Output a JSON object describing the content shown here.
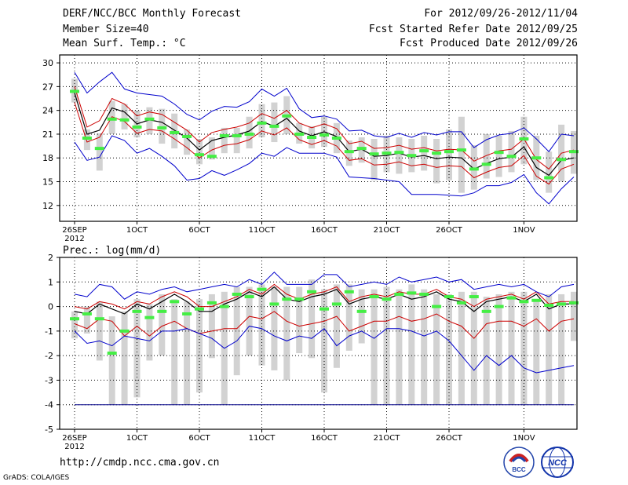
{
  "header": {
    "title": "DERF/NCC/BCC Monthly Forecast",
    "member_size": "Member Size=40",
    "variable": "Mean Surf. Temp.: °C",
    "period": "For 2012/09/26-2012/11/04",
    "fcst_started": "Fcst Started Refer Date 2012/09/25",
    "fcst_produced": "Fcst Produced Date 2012/09/26"
  },
  "footer": {
    "url": "http://cmdp.ncc.cma.gov.cn",
    "grads": "GrADS: COLA/IGES",
    "logo_bcc": "BCC",
    "logo_ncc": "NCC"
  },
  "colors": {
    "box": "#d2d2d2",
    "mean": "#000000",
    "inner": "#cc0000",
    "outer": "#0000cc",
    "green": "#44ee44",
    "grid": "#000000"
  },
  "chart_data": [
    {
      "type": "line",
      "title": "Mean Surf. Temp.: °C",
      "ylim": [
        10,
        31
      ],
      "yticks": [
        12,
        15,
        18,
        21,
        24,
        27,
        30
      ],
      "xtick_labels": [
        "26SEP\n2012",
        "1OCT",
        "6OCT",
        "11OCT",
        "16OCT",
        "21OCT",
        "26OCT",
        "1NOV"
      ],
      "xtick_days": [
        0,
        5,
        10,
        15,
        20,
        25,
        30,
        36
      ],
      "days": 40,
      "series": [
        {
          "name": "mean",
          "values": [
            26.2,
            21.0,
            21.5,
            24.3,
            23.8,
            22.3,
            22.8,
            22.5,
            21.5,
            20.5,
            19.0,
            20.2,
            20.6,
            20.9,
            21.4,
            22.6,
            22.0,
            23.0,
            21.4,
            20.8,
            21.3,
            20.7,
            18.8,
            19.1,
            18.2,
            18.3,
            18.6,
            18.1,
            18.3,
            17.9,
            18.1,
            18.0,
            16.6,
            17.3,
            17.9,
            18.1,
            19.4,
            16.8,
            15.8,
            17.7,
            18.0
          ]
        },
        {
          "name": "upper_inner",
          "values": [
            27.0,
            21.9,
            22.7,
            25.5,
            24.8,
            23.3,
            23.8,
            23.5,
            22.5,
            21.5,
            20.0,
            21.2,
            21.6,
            21.9,
            22.4,
            23.6,
            23.0,
            24.0,
            22.4,
            21.8,
            22.3,
            21.7,
            19.8,
            20.1,
            19.2,
            19.3,
            19.6,
            19.1,
            19.3,
            18.9,
            19.1,
            19.0,
            17.6,
            18.3,
            18.9,
            19.1,
            20.4,
            17.8,
            16.6,
            18.6,
            19.0
          ]
        },
        {
          "name": "lower_inner",
          "values": [
            25.0,
            20.0,
            20.6,
            23.2,
            22.6,
            21.1,
            21.6,
            21.4,
            20.4,
            19.3,
            18.0,
            19.0,
            19.6,
            19.8,
            20.3,
            21.4,
            20.9,
            21.8,
            20.3,
            19.7,
            20.2,
            19.5,
            17.7,
            17.9,
            17.1,
            17.2,
            17.5,
            17.0,
            17.2,
            16.8,
            17.0,
            16.9,
            15.5,
            16.2,
            16.8,
            17.0,
            18.3,
            15.7,
            14.7,
            16.6,
            17.2
          ]
        },
        {
          "name": "upper_outer",
          "values": [
            28.8,
            26.2,
            27.6,
            28.8,
            26.7,
            26.2,
            26.0,
            25.8,
            24.8,
            23.5,
            22.8,
            23.9,
            24.5,
            24.4,
            25.1,
            26.7,
            25.8,
            26.8,
            24.2,
            23.1,
            23.3,
            22.9,
            21.4,
            21.5,
            20.8,
            20.6,
            21.1,
            20.6,
            21.2,
            20.9,
            21.3,
            21.3,
            19.3,
            20.3,
            20.9,
            21.1,
            21.8,
            20.4,
            18.8,
            21.0,
            20.8
          ]
        },
        {
          "name": "lower_outer",
          "values": [
            20.0,
            17.7,
            18.1,
            20.8,
            20.2,
            18.6,
            19.2,
            18.2,
            17.0,
            15.2,
            15.4,
            16.4,
            15.8,
            16.5,
            17.3,
            18.6,
            18.2,
            19.3,
            18.6,
            18.6,
            18.6,
            18.1,
            15.6,
            15.5,
            15.4,
            15.2,
            15.0,
            13.4,
            13.4,
            13.4,
            13.3,
            13.2,
            13.6,
            14.5,
            14.5,
            14.9,
            15.9,
            13.6,
            12.2,
            14.1,
            15.6
          ]
        },
        {
          "name": "green_marker",
          "values": [
            26.4,
            20.5,
            19.2,
            22.9,
            22.8,
            21.9,
            22.9,
            21.8,
            21.2,
            20.7,
            18.4,
            18.2,
            20.8,
            20.8,
            21.0,
            22.4,
            22.0,
            23.3,
            21.0,
            20.6,
            20.9,
            20.5,
            18.8,
            19.2,
            18.5,
            18.6,
            18.7,
            18.3,
            18.9,
            18.6,
            18.8,
            19.0,
            16.6,
            17.2,
            18.7,
            18.2,
            20.4,
            18.0,
            15.5,
            17.8,
            18.8
          ]
        }
      ],
      "boxes": [
        [
          25.0,
          28.0
        ],
        [
          19.0,
          21.6
        ],
        [
          16.4,
          21.1
        ],
        [
          21.0,
          25.2
        ],
        [
          21.6,
          24.8
        ],
        [
          20.6,
          24.0
        ],
        [
          21.0,
          24.4
        ],
        [
          19.8,
          24.2
        ],
        [
          19.2,
          23.6
        ],
        [
          18.4,
          21.6
        ],
        [
          17.2,
          20.4
        ],
        [
          17.8,
          20.6
        ],
        [
          18.6,
          21.8
        ],
        [
          18.6,
          21.8
        ],
        [
          19.2,
          23.2
        ],
        [
          20.6,
          24.8
        ],
        [
          20.0,
          25.0
        ],
        [
          21.0,
          25.8
        ],
        [
          19.8,
          22.4
        ],
        [
          19.2,
          22.0
        ],
        [
          19.4,
          23.2
        ],
        [
          18.6,
          22.4
        ],
        [
          17.0,
          20.2
        ],
        [
          17.4,
          20.6
        ],
        [
          15.2,
          20.4
        ],
        [
          16.2,
          20.8
        ],
        [
          16.0,
          20.6
        ],
        [
          16.2,
          20.4
        ],
        [
          16.4,
          20.8
        ],
        [
          14.8,
          20.4
        ],
        [
          15.2,
          21.6
        ],
        [
          13.6,
          23.2
        ],
        [
          14.0,
          19.6
        ],
        [
          15.4,
          21.0
        ],
        [
          15.6,
          20.8
        ],
        [
          16.2,
          21.4
        ],
        [
          17.2,
          23.2
        ],
        [
          15.2,
          20.8
        ],
        [
          13.6,
          18.8
        ],
        [
          15.0,
          22.2
        ],
        [
          16.0,
          21.4
        ]
      ]
    },
    {
      "type": "line",
      "title": "Prec.: log(mm/d)",
      "ylim": [
        -5,
        2
      ],
      "yticks": [
        -5,
        -4,
        -3,
        -2,
        -1,
        0,
        1,
        2
      ],
      "xtick_labels": [
        "26SEP\n2012",
        "1OCT",
        "6OCT",
        "11OCT",
        "16OCT",
        "21OCT",
        "26OCT",
        "1NOV"
      ],
      "xtick_days": [
        0,
        5,
        10,
        15,
        20,
        25,
        30,
        36
      ],
      "days": 40,
      "series": [
        {
          "name": "mean",
          "values": [
            -0.2,
            -0.3,
            0.1,
            -0.1,
            -0.3,
            0.1,
            -0.1,
            0.2,
            0.5,
            0.2,
            -0.2,
            -0.2,
            0.1,
            0.3,
            0.6,
            0.4,
            0.8,
            0.3,
            0.2,
            0.4,
            0.5,
            0.7,
            0.1,
            0.3,
            0.4,
            0.3,
            0.5,
            0.3,
            0.4,
            0.6,
            0.3,
            0.2,
            -0.2,
            0.2,
            0.3,
            0.4,
            0.2,
            0.5,
            -0.1,
            0.1,
            0.1
          ]
        },
        {
          "name": "upper_inner",
          "values": [
            0.0,
            -0.1,
            0.2,
            0.1,
            -0.1,
            0.2,
            0.1,
            0.4,
            0.6,
            0.4,
            0.0,
            0.0,
            0.2,
            0.4,
            0.7,
            0.5,
            0.9,
            0.5,
            0.3,
            0.5,
            0.6,
            0.8,
            0.2,
            0.4,
            0.5,
            0.4,
            0.6,
            0.5,
            0.5,
            0.7,
            0.4,
            0.3,
            0.0,
            0.3,
            0.4,
            0.5,
            0.3,
            0.6,
            0.1,
            0.2,
            0.2
          ]
        },
        {
          "name": "lower_inner",
          "values": [
            -0.7,
            -0.9,
            -0.5,
            -0.6,
            -1.2,
            -0.8,
            -1.2,
            -0.8,
            -0.6,
            -0.9,
            -1.1,
            -1.0,
            -0.9,
            -0.9,
            -0.4,
            -0.5,
            -0.2,
            -0.6,
            -0.8,
            -0.7,
            -0.6,
            -0.4,
            -1.0,
            -0.8,
            -0.6,
            -0.6,
            -0.4,
            -0.6,
            -0.5,
            -0.3,
            -0.6,
            -0.8,
            -1.3,
            -0.7,
            -0.6,
            -0.6,
            -0.8,
            -0.5,
            -1.0,
            -0.6,
            -0.5
          ]
        },
        {
          "name": "lower_outer",
          "values": [
            -1.0,
            -1.5,
            -1.4,
            -1.6,
            -1.2,
            -1.3,
            -1.4,
            -1.0,
            -1.0,
            -0.9,
            -1.1,
            -1.3,
            -1.7,
            -1.4,
            -0.8,
            -0.9,
            -1.2,
            -1.4,
            -1.2,
            -1.3,
            -0.9,
            -1.6,
            -1.2,
            -1.0,
            -1.3,
            -0.9,
            -0.9,
            -1.0,
            -1.2,
            -1.0,
            -1.4,
            -2.0,
            -2.6,
            -2.0,
            -2.4,
            -2.0,
            -2.5,
            -2.7,
            -2.6,
            -2.5,
            -2.4
          ]
        },
        {
          "name": "upper_outer",
          "values": [
            0.5,
            0.4,
            0.9,
            0.8,
            0.3,
            0.6,
            0.5,
            0.7,
            0.8,
            0.6,
            0.7,
            0.8,
            0.9,
            0.8,
            1.1,
            0.9,
            1.4,
            0.9,
            0.9,
            0.9,
            1.3,
            1.3,
            0.8,
            0.9,
            1.0,
            0.9,
            1.2,
            1.0,
            1.1,
            1.2,
            1.0,
            1.1,
            0.7,
            0.8,
            0.9,
            0.8,
            0.9,
            0.6,
            0.4,
            0.8,
            0.9
          ]
        },
        {
          "name": "green_marker",
          "values": [
            -0.5,
            -0.3,
            -0.5,
            -1.9,
            -1.0,
            -0.2,
            -0.45,
            -0.2,
            0.2,
            -0.3,
            -0.1,
            0.15,
            0.0,
            0.5,
            0.4,
            0.7,
            0.1,
            0.3,
            0.3,
            0.6,
            -0.1,
            0.1,
            0.6,
            -0.2,
            0.4,
            0.3,
            0.5,
            0.55,
            0.5,
            0.0,
            0.4,
            0.15,
            0.4,
            -0.2,
            0.0,
            0.35,
            0.2,
            0.25,
            0.05,
            0.1,
            0.15
          ]
        },
        {
          "name": "floor",
          "values": [
            -4,
            -4,
            -4,
            -4,
            -4,
            -4,
            -4,
            -4,
            -4,
            -4,
            -4,
            -4,
            -4,
            -4,
            -4,
            -4,
            -4,
            -4,
            -4,
            -4,
            -4,
            -4,
            -4,
            -4,
            -4,
            -4,
            -4,
            -4,
            -4,
            -4,
            -4,
            -4,
            -4,
            -4,
            -4,
            -4,
            -4,
            -4,
            -4,
            -4,
            -4
          ]
        }
      ],
      "boxes": [
        [
          -1.3,
          -0.2
        ],
        [
          -1.1,
          0.0
        ],
        [
          -2.2,
          0.2
        ],
        [
          -4.0,
          -0.4
        ],
        [
          -4.0,
          -0.2
        ],
        [
          -3.7,
          0.3
        ],
        [
          -2.2,
          0.1
        ],
        [
          -2.0,
          0.5
        ],
        [
          -4.0,
          0.3
        ],
        [
          -4.0,
          0.2
        ],
        [
          -3.5,
          0.3
        ],
        [
          -2.1,
          0.5
        ],
        [
          -4.0,
          0.6
        ],
        [
          -2.8,
          0.8
        ],
        [
          -2.0,
          0.8
        ],
        [
          -2.4,
          0.9
        ],
        [
          -2.6,
          0.8
        ],
        [
          -3.0,
          0.8
        ],
        [
          -1.9,
          0.8
        ],
        [
          -2.1,
          1.1
        ],
        [
          -3.5,
          0.7
        ],
        [
          -2.5,
          0.9
        ],
        [
          -1.8,
          0.9
        ],
        [
          -1.5,
          0.7
        ],
        [
          -4.0,
          0.7
        ],
        [
          -4.0,
          0.8
        ],
        [
          -4.0,
          0.7
        ],
        [
          -4.0,
          0.9
        ],
        [
          -4.0,
          0.7
        ],
        [
          -4.0,
          0.5
        ],
        [
          -4.0,
          0.5
        ],
        [
          -4.0,
          0.6
        ],
        [
          -4.0,
          0.6
        ],
        [
          -4.0,
          0.4
        ],
        [
          -4.0,
          0.5
        ],
        [
          -4.0,
          0.6
        ],
        [
          -4.0,
          0.6
        ],
        [
          -4.0,
          0.3
        ],
        [
          -4.0,
          0.5
        ],
        [
          -4.0,
          0.5
        ],
        [
          -1.4,
          0.6
        ]
      ]
    }
  ]
}
